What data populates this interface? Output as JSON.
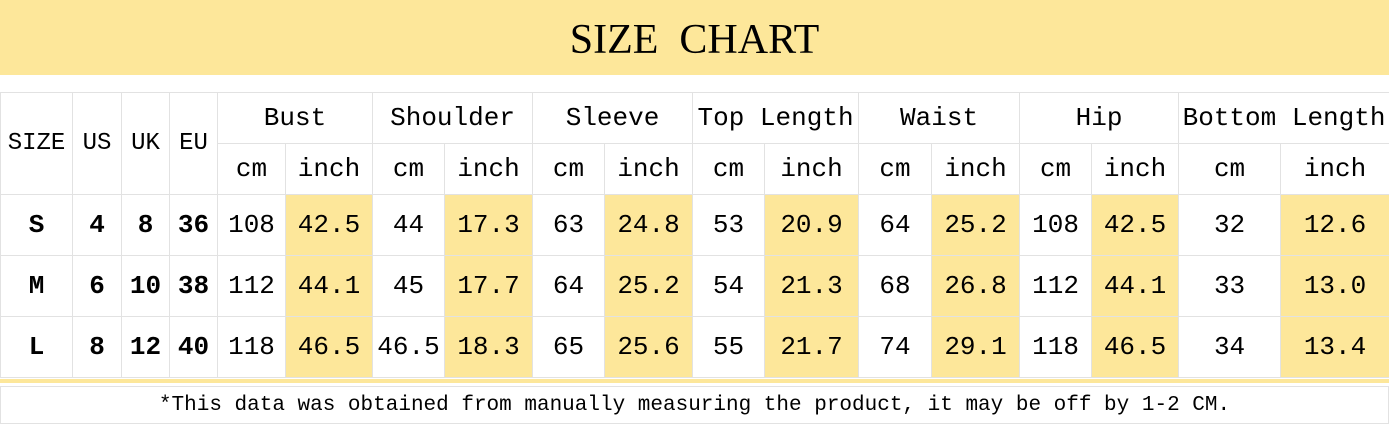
{
  "title": "SIZE  CHART",
  "table": {
    "columns": [
      "SIZE",
      "US",
      "UK",
      "EU"
    ],
    "groups": [
      {
        "name": "Bust",
        "units": [
          "cm",
          "inch"
        ]
      },
      {
        "name": "Shoulder",
        "units": [
          "cm",
          "inch"
        ]
      },
      {
        "name": "Sleeve",
        "units": [
          "cm",
          "inch"
        ]
      },
      {
        "name": "Top Length",
        "units": [
          "cm",
          "inch"
        ]
      },
      {
        "name": "Waist",
        "units": [
          "cm",
          "inch"
        ]
      },
      {
        "name": "Hip",
        "units": [
          "cm",
          "inch"
        ]
      },
      {
        "name": "Bottom Length",
        "units": [
          "cm",
          "inch"
        ]
      }
    ],
    "rows": [
      [
        "S",
        "4",
        "8",
        "36",
        "108",
        "42.5",
        "44",
        "17.3",
        "63",
        "24.8",
        "53",
        "20.9",
        "64",
        "25.2",
        "108",
        "42.5",
        "32",
        "12.6"
      ],
      [
        "M",
        "6",
        "10",
        "38",
        "112",
        "44.1",
        "45",
        "17.7",
        "64",
        "25.2",
        "54",
        "21.3",
        "68",
        "26.8",
        "112",
        "44.1",
        "33",
        "13.0"
      ],
      [
        "L",
        "8",
        "12",
        "40",
        "118",
        "46.5",
        "46.5",
        "18.3",
        "65",
        "25.6",
        "55",
        "21.7",
        "74",
        "29.1",
        "118",
        "46.5",
        "34",
        "13.4"
      ]
    ]
  },
  "note": "*This data was obtained from manually measuring the product, it may be off by 1-2 CM."
}
